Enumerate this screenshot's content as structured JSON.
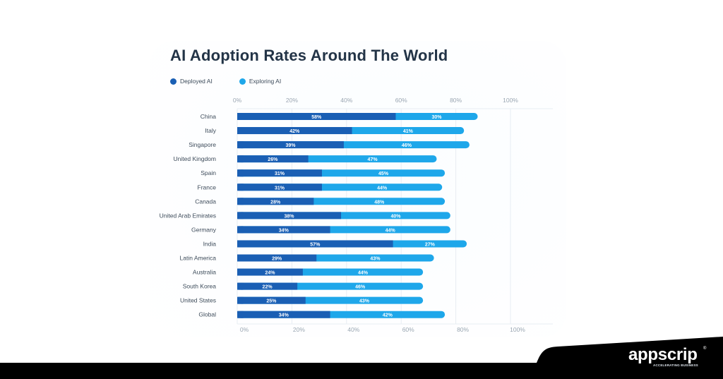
{
  "brand": {
    "name": "appscrip",
    "registered_mark": "®",
    "tagline": "ACCELERATING BUSINESS"
  },
  "colors": {
    "deployed": "#1a5fb4",
    "exploring": "#1ea7ea",
    "title": "#233447",
    "label": "#3d4b5a",
    "tick": "#9aa6b2",
    "grid": "#e8edf3",
    "track": "#dde8f3"
  },
  "chart_data": {
    "type": "bar",
    "orientation": "horizontal",
    "stacked": true,
    "title": "AI Adoption Rates Around The World",
    "xlabel": "",
    "ylabel": "",
    "xlim": [
      0,
      100
    ],
    "xticks": [
      "0%",
      "20%",
      "40%",
      "60%",
      "80%",
      "100%"
    ],
    "grid": true,
    "legend_position": "top-left",
    "categories": [
      "China",
      "Italy",
      "Singapore",
      "United Kingdom",
      "Spain",
      "France",
      "Canada",
      "United Arab Emirates",
      "Germany",
      "India",
      "Latin America",
      "Australia",
      "South Korea",
      "United States",
      "Global"
    ],
    "series": [
      {
        "name": "Deployed AI",
        "values": [
          58,
          42,
          39,
          26,
          31,
          31,
          28,
          38,
          34,
          57,
          29,
          24,
          22,
          25,
          34
        ],
        "labels": [
          "58%",
          "42%",
          "39%",
          "26%",
          "31%",
          "31%",
          "28%",
          "38%",
          "34%",
          "57%",
          "29%",
          "24%",
          "22%",
          "25%",
          "34%"
        ]
      },
      {
        "name": "Exploring AI",
        "values": [
          30,
          41,
          46,
          47,
          45,
          44,
          48,
          40,
          44,
          27,
          43,
          44,
          46,
          43,
          42
        ],
        "labels": [
          "30%",
          "41%",
          "46%",
          "47%",
          "45%",
          "44%",
          "48%",
          "40%",
          "44%",
          "27%",
          "43%",
          "44%",
          "46%",
          "43%",
          "42%"
        ]
      }
    ]
  }
}
